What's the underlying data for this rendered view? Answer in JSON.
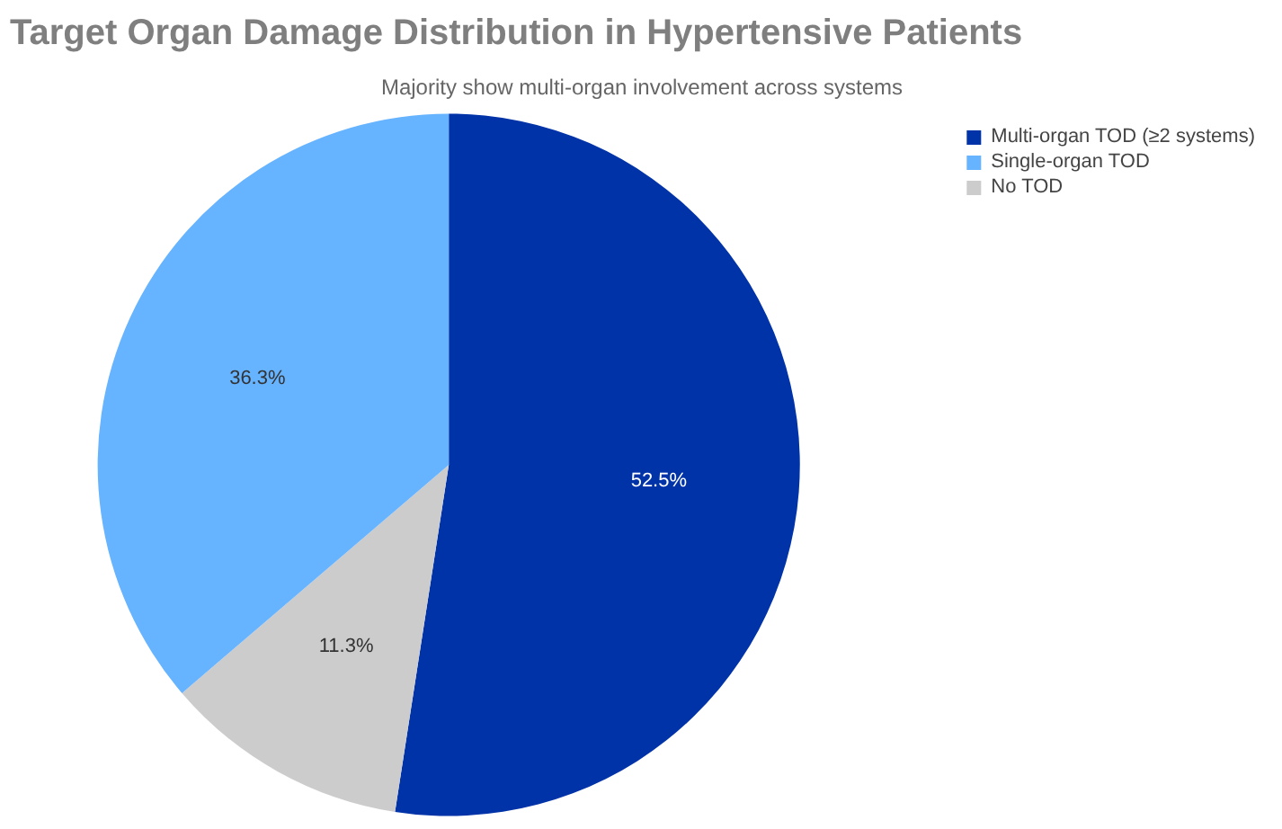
{
  "chart_data": {
    "type": "pie",
    "title": "Target Organ Damage Distribution in Hypertensive Patients",
    "subtitle": "Majority show multi-organ involvement across systems",
    "categories": [
      "Multi-organ TOD (≥2 systems)",
      "No TOD",
      "Single-organ TOD"
    ],
    "values": [
      52.5,
      11.3,
      36.3
    ],
    "value_labels": [
      "52.5%",
      "11.3%",
      "36.3%"
    ],
    "colors": [
      "#0033a8",
      "#cccccc",
      "#66b3ff"
    ],
    "legend": "top right"
  }
}
